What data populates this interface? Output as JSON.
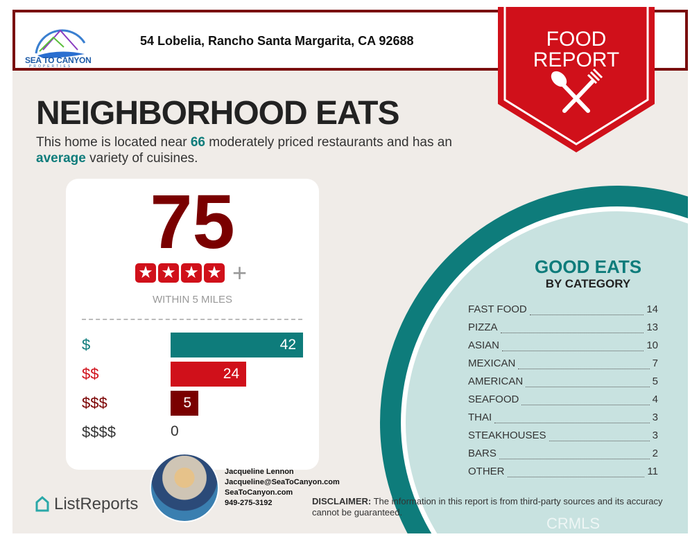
{
  "header": {
    "logo_text": "SEA TO CANYON",
    "logo_sub": "PROPERTIES",
    "address": "54 Lobelia, Rancho Santa Margarita, CA 92688"
  },
  "banner": {
    "line1": "FOOD",
    "line2": "REPORT",
    "icon": "spoon-fork-icon"
  },
  "title": "NEIGHBORHOOD EATS",
  "intro": {
    "p1": "This home is located near ",
    "count": "66",
    "p2": " moderately priced restaurants and has an ",
    "variety": "average",
    "p3": " variety of cuisines."
  },
  "score": {
    "value": "75",
    "stars": 4,
    "plus": "+",
    "within": "WITHIN 5 MILES"
  },
  "price_bars": [
    {
      "label": "$",
      "value": 42,
      "color": "#0e7c7b"
    },
    {
      "label": "$$",
      "value": 24,
      "color": "#d0101a"
    },
    {
      "label": "$$$",
      "value": 5,
      "color": "#7a0000"
    },
    {
      "label": "$$$$",
      "value": 0,
      "color": "#333333"
    }
  ],
  "good_eats": {
    "title": "GOOD EATS",
    "subtitle": "BY CATEGORY",
    "categories": [
      {
        "name": "FAST FOOD",
        "count": "14"
      },
      {
        "name": "PIZZA",
        "count": "13"
      },
      {
        "name": "ASIAN",
        "count": "10"
      },
      {
        "name": "MEXICAN",
        "count": "7"
      },
      {
        "name": "AMERICAN",
        "count": "5"
      },
      {
        "name": "SEAFOOD",
        "count": "4"
      },
      {
        "name": "THAI",
        "count": "3"
      },
      {
        "name": "STEAKHOUSES",
        "count": "3"
      },
      {
        "name": "BARS",
        "count": "2"
      },
      {
        "name": "OTHER",
        "count": "11"
      }
    ]
  },
  "agent": {
    "name": "Jacqueline Lennon",
    "email": "Jacqueline@SeaToCanyon.com",
    "website": "SeaToCanyon.com",
    "phone": "949-275-3192"
  },
  "footer": {
    "brand": "ListReports",
    "disclaimer_label": "DISCLAIMER:",
    "disclaimer": " The information in this report is from third-party sources and its accuracy cannot be guaranteed.",
    "watermark": "CRMLS"
  },
  "colors": {
    "teal": "#0e7c7b",
    "red": "#d0101a",
    "maroon": "#7a0000"
  }
}
